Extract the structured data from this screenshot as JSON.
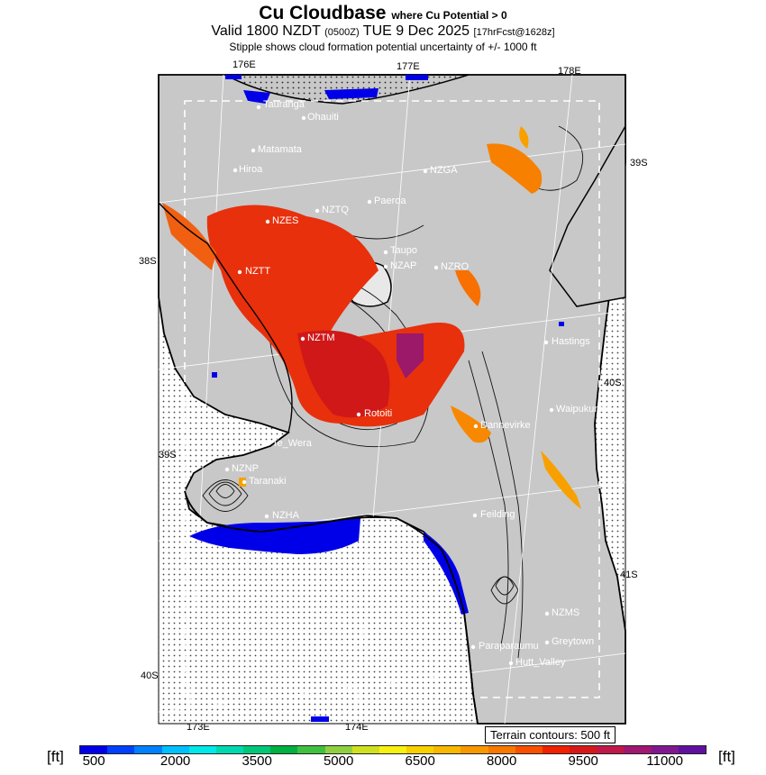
{
  "title": {
    "main": "Cu Cloudbase",
    "main_suffix": "where Cu Potential > 0",
    "valid_prefix": "Valid 1800 NZDT",
    "valid_utc": "(0500Z)",
    "valid_date": "TUE 9 Dec 2025",
    "forecast": "[17hrFcst@1628z]",
    "subtitle": "Stipple shows cloud formation potential uncertainty of +/- 1000 ft"
  },
  "longitude_labels": [
    "176E",
    "177E",
    "178E",
    "173E",
    "174E"
  ],
  "latitude_labels": [
    "39S",
    "38S",
    "40S",
    "39S",
    "41S",
    "40S"
  ],
  "places": [
    {
      "name": "Tauranga"
    },
    {
      "name": "Ohauiti"
    },
    {
      "name": "Matamata"
    },
    {
      "name": "Hiroa"
    },
    {
      "name": "NZGA"
    },
    {
      "name": "Paeroa"
    },
    {
      "name": "NZES"
    },
    {
      "name": "NZTQ"
    },
    {
      "name": "NZTT"
    },
    {
      "name": "Taupo"
    },
    {
      "name": "NZAP"
    },
    {
      "name": "NZRO"
    },
    {
      "name": "NZTM"
    },
    {
      "name": "Hastings"
    },
    {
      "name": "Waipukurau"
    },
    {
      "name": "Rotoiti"
    },
    {
      "name": "Dannevirke"
    },
    {
      "name": "Te_Wera"
    },
    {
      "name": "NZNP"
    },
    {
      "name": "Taranaki"
    },
    {
      "name": "NZHA"
    },
    {
      "name": "Feilding"
    },
    {
      "name": "NZMS"
    },
    {
      "name": "Greytown"
    },
    {
      "name": "Paraparaumu"
    },
    {
      "name": "Hutt_Valley"
    }
  ],
  "terrain_note": "Terrain contours: 500 ft",
  "legend": {
    "unit": "[ft]",
    "ticks": [
      "500",
      "2000",
      "3500",
      "5000",
      "6500",
      "8000",
      "9500",
      "11000"
    ],
    "colors": [
      "#0000e8",
      "#0040ff",
      "#0080ff",
      "#00c0ff",
      "#00e8e8",
      "#00d8b0",
      "#00c878",
      "#00b040",
      "#40c040",
      "#90d040",
      "#d0e020",
      "#f8f010",
      "#f8d000",
      "#f8b800",
      "#f89800",
      "#f87800",
      "#f85000",
      "#f02000",
      "#d81818",
      "#c01848",
      "#a01870",
      "#801890",
      "#6010a0"
    ]
  }
}
